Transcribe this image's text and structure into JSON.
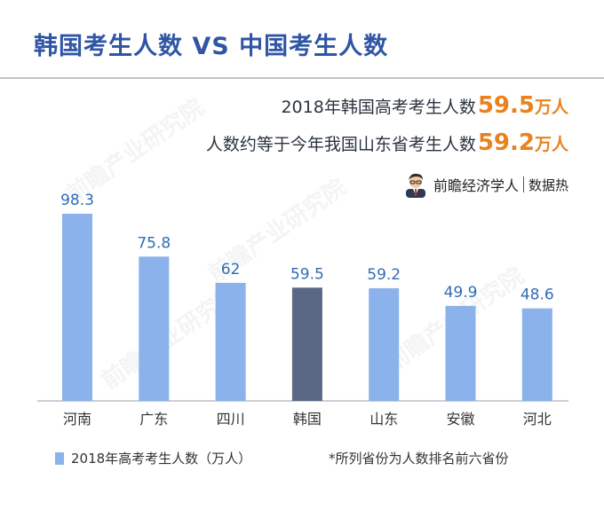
{
  "title": "韩国考生人数 VS 中国考生人数",
  "headline": {
    "line1_text": "2018年韩国高考考生人数",
    "line1_value": "59.5",
    "line1_unit": "万人",
    "line2_text": "人数约等于今年我国山东省考生人数",
    "line2_value": "59.2",
    "line2_unit": "万人"
  },
  "brand": {
    "name": "前瞻经济学人",
    "sub": "数据热"
  },
  "watermark": "前瞻产业研究院",
  "legend_label": "2018年高考考生人数（万人）",
  "note": "*所列省份为人数排名前六省份",
  "colors": {
    "bar": "#8bb2ea",
    "highlight_bar": "#5a6886",
    "value_label": "#2f6db5",
    "accent": "#e9821e",
    "title": "#2f55a4"
  },
  "chart_data": {
    "type": "bar",
    "categories": [
      "河南",
      "广东",
      "四川",
      "韩国",
      "山东",
      "安徽",
      "河北"
    ],
    "values": [
      98.3,
      75.8,
      62,
      59.5,
      59.2,
      49.9,
      48.6
    ],
    "value_labels": [
      "98.3",
      "75.8",
      "62",
      "59.5",
      "59.2",
      "49.9",
      "48.6"
    ],
    "highlight_category": "韩国",
    "series_name": "2018年高考考生人数（万人）",
    "ylim": [
      0,
      98.3
    ],
    "grid": false,
    "legend": "bottom-left"
  }
}
